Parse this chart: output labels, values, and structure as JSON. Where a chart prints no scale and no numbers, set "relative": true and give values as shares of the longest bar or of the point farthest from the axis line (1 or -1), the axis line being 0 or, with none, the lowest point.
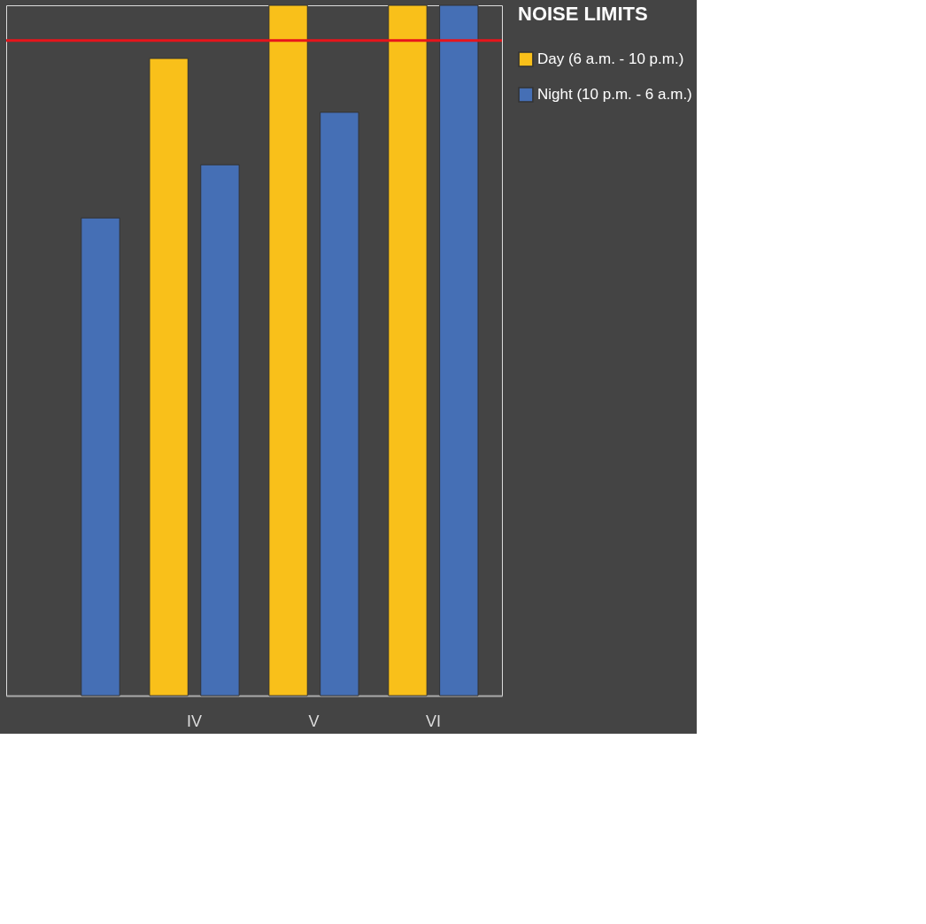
{
  "chart_data": {
    "type": "bar",
    "relative": true,
    "legend_title": "NOISE LIMITS",
    "legend": "right",
    "categories": [
      null,
      "IV",
      "V",
      "VI"
    ],
    "series": [
      {
        "name": "Day (6 a.m. - 10 p.m.)",
        "color": "#f9c01a",
        "values": [
          null,
          0.923,
          1,
          1
        ]
      },
      {
        "name": "Night (10 p.m. - 6 a.m.)",
        "color": "#456fb5",
        "values": [
          0.692,
          0.769,
          0.845,
          1
        ]
      }
    ],
    "ref_lines": [
      {
        "axis": "y",
        "value": 0.949,
        "color": "#e8141b"
      }
    ]
  }
}
